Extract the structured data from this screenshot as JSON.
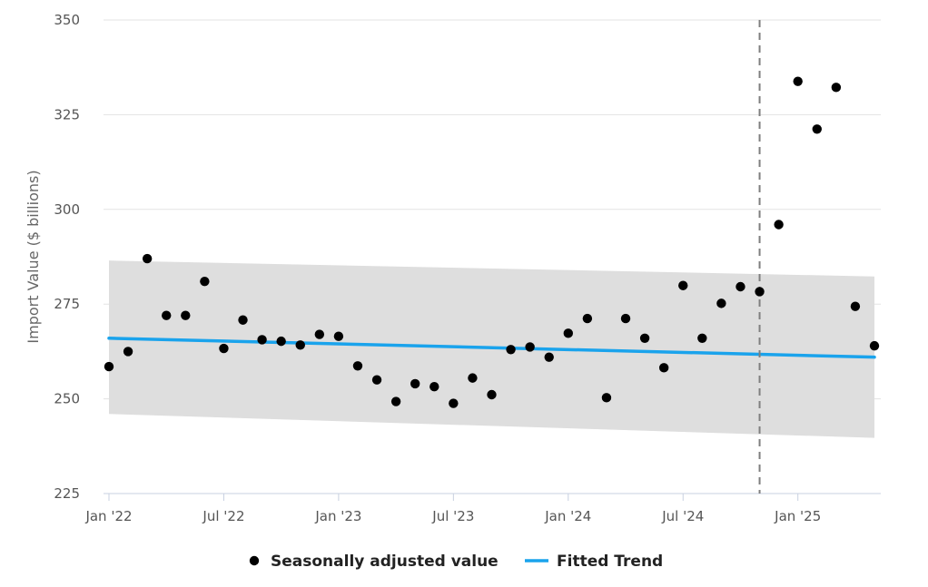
{
  "chart_data": {
    "type": "scatter",
    "title": "",
    "xlabel": "",
    "ylabel": "Import Value ($ billions)",
    "ylim": [
      225,
      350
    ],
    "yticks": [
      225,
      250,
      275,
      300,
      325,
      350
    ],
    "xlim": [
      "2022-01",
      "2025-05"
    ],
    "xticks": [
      {
        "date": "2022-01",
        "label": "Jan '22"
      },
      {
        "date": "2022-07",
        "label": "Jul '22"
      },
      {
        "date": "2023-01",
        "label": "Jan '23"
      },
      {
        "date": "2023-07",
        "label": "Jul '23"
      },
      {
        "date": "2024-01",
        "label": "Jan '24"
      },
      {
        "date": "2024-07",
        "label": "Jul '24"
      },
      {
        "date": "2025-01",
        "label": "Jan '25"
      }
    ],
    "grid": true,
    "legend_position": "bottom",
    "vertical_marker": {
      "date": "2024-11",
      "style": "dashed",
      "color": "#7f7f7f"
    },
    "series": [
      {
        "name": "Seasonally adjusted value",
        "kind": "scatter",
        "color": "#000000",
        "points": [
          [
            "2022-01",
            258.5
          ],
          [
            "2022-02",
            262.5
          ],
          [
            "2022-03",
            287.0
          ],
          [
            "2022-04",
            272.0
          ],
          [
            "2022-05",
            272.0
          ],
          [
            "2022-06",
            281.0
          ],
          [
            "2022-07",
            263.3
          ],
          [
            "2022-08",
            270.8
          ],
          [
            "2022-09",
            265.6
          ],
          [
            "2022-10",
            265.2
          ],
          [
            "2022-11",
            264.2
          ],
          [
            "2022-12",
            267.0
          ],
          [
            "2023-01",
            266.5
          ],
          [
            "2023-02",
            258.7
          ],
          [
            "2023-03",
            255.0
          ],
          [
            "2023-04",
            249.3
          ],
          [
            "2023-05",
            254.0
          ],
          [
            "2023-06",
            253.2
          ],
          [
            "2023-07",
            248.8
          ],
          [
            "2023-08",
            255.5
          ],
          [
            "2023-09",
            251.1
          ],
          [
            "2023-10",
            263.0
          ],
          [
            "2023-11",
            263.7
          ],
          [
            "2023-12",
            261.0
          ],
          [
            "2024-01",
            267.3
          ],
          [
            "2024-02",
            271.2
          ],
          [
            "2024-03",
            250.3
          ],
          [
            "2024-04",
            271.2
          ],
          [
            "2024-05",
            266.0
          ],
          [
            "2024-06",
            258.2
          ],
          [
            "2024-07",
            279.9
          ],
          [
            "2024-08",
            266.0
          ],
          [
            "2024-09",
            275.2
          ],
          [
            "2024-10",
            279.6
          ],
          [
            "2024-11",
            278.3
          ],
          [
            "2024-12",
            296.0
          ],
          [
            "2025-01",
            333.8
          ],
          [
            "2025-02",
            321.2
          ],
          [
            "2025-03",
            332.2
          ],
          [
            "2025-04",
            274.4
          ],
          [
            "2025-05",
            264.0
          ]
        ]
      },
      {
        "name": "Fitted Trend",
        "kind": "line",
        "color": "#1aa3ec",
        "points": [
          [
            "2022-01",
            266.0
          ],
          [
            "2025-05",
            261.0
          ]
        ]
      }
    ],
    "confidence_band": {
      "color": "#dedede",
      "upper": [
        [
          "2022-01",
          286.5
        ],
        [
          "2025-05",
          282.3
        ]
      ],
      "lower": [
        [
          "2022-01",
          246.0
        ],
        [
          "2025-05",
          239.7
        ]
      ]
    }
  }
}
